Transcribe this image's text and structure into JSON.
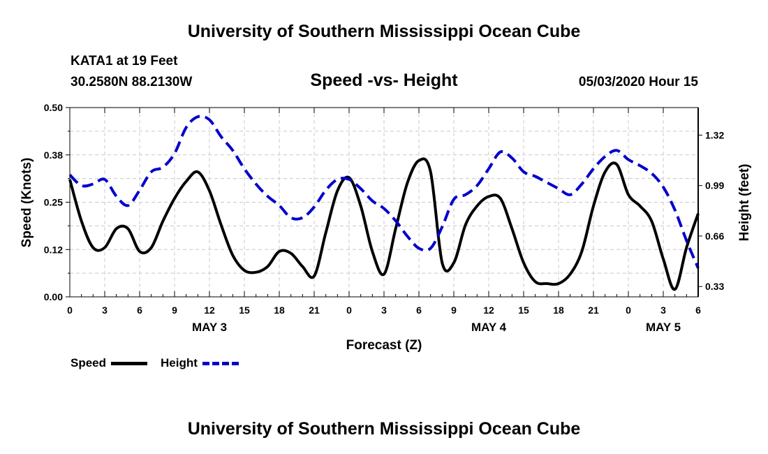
{
  "header": {
    "banner": "University of Southern Mississippi Ocean Cube",
    "station": "KATA1 at 19 Feet",
    "coords": "30.2580N 88.2130W",
    "timestamp": "05/03/2020 Hour 15"
  },
  "footer": {
    "banner": "University of Southern Mississippi Ocean Cube"
  },
  "legend": {
    "speed_label": "Speed",
    "height_label": "Height"
  },
  "chart_data": {
    "type": "line",
    "title": "Speed -vs- Height",
    "xlabel": "Forecast (Z)",
    "ylabel": "Speed (Knots)",
    "y2label": "Height (feet)",
    "xlim": [
      0,
      54
    ],
    "ylim": [
      0,
      0.5
    ],
    "y2lim": [
      0.2625,
      1.5
    ],
    "x_ticks": [
      0,
      3,
      6,
      9,
      12,
      15,
      18,
      21,
      24,
      27,
      30,
      33,
      36,
      39,
      42,
      45,
      48,
      51,
      54
    ],
    "x_tick_labels": [
      "0",
      "3",
      "6",
      "9",
      "12",
      "15",
      "18",
      "21",
      "0",
      "3",
      "6",
      "9",
      "12",
      "15",
      "18",
      "21",
      "0",
      "3",
      "6"
    ],
    "y_ticks": [
      0.0,
      0.125,
      0.25,
      0.375,
      0.5
    ],
    "y_tick_labels": [
      "0.00",
      "0.12",
      "0.25",
      "0.38",
      "0.50"
    ],
    "y2_ticks": [
      0.33,
      0.66,
      0.99,
      1.32
    ],
    "y2_tick_labels": [
      "0.33",
      "0.66",
      "0.99",
      "1.32"
    ],
    "day_labels": [
      {
        "x": 12,
        "label": "MAY 3"
      },
      {
        "x": 36,
        "label": "MAY 4"
      },
      {
        "x": 51,
        "label": "MAY 5"
      }
    ],
    "grid": true,
    "legend_position": "bottom-left",
    "series": [
      {
        "name": "Speed",
        "axis": "left",
        "color": "#000000",
        "style": "solid",
        "x": [
          0,
          1,
          2,
          3,
          4,
          5,
          6,
          7,
          8,
          9,
          10,
          11,
          12,
          13,
          14,
          15,
          16,
          17,
          18,
          19,
          20,
          21,
          22,
          23,
          24,
          25,
          26,
          27,
          28,
          29,
          30,
          31,
          32,
          33,
          34,
          35,
          36,
          37,
          38,
          39,
          40,
          41,
          42,
          43,
          44,
          45,
          46,
          47,
          48,
          49,
          50,
          51,
          52,
          53,
          54
        ],
        "values": [
          0.31,
          0.2,
          0.13,
          0.13,
          0.18,
          0.18,
          0.12,
          0.13,
          0.2,
          0.26,
          0.305,
          0.33,
          0.28,
          0.19,
          0.11,
          0.07,
          0.065,
          0.08,
          0.12,
          0.115,
          0.08,
          0.055,
          0.17,
          0.28,
          0.315,
          0.24,
          0.12,
          0.06,
          0.18,
          0.3,
          0.36,
          0.33,
          0.09,
          0.09,
          0.19,
          0.24,
          0.265,
          0.26,
          0.18,
          0.09,
          0.04,
          0.035,
          0.035,
          0.06,
          0.12,
          0.24,
          0.33,
          0.35,
          0.27,
          0.24,
          0.2,
          0.1,
          0.02,
          0.13,
          0.22
        ]
      },
      {
        "name": "Height",
        "axis": "right",
        "color": "#0000cc",
        "style": "dashed",
        "x": [
          0,
          1,
          2,
          3,
          4,
          5,
          6,
          7,
          8,
          9,
          10,
          11,
          12,
          13,
          14,
          15,
          16,
          17,
          18,
          19,
          20,
          21,
          22,
          23,
          24,
          25,
          26,
          27,
          28,
          29,
          30,
          31,
          32,
          33,
          34,
          35,
          36,
          37,
          38,
          39,
          40,
          41,
          42,
          43,
          44,
          45,
          46,
          47,
          48,
          49,
          50,
          51,
          52,
          53,
          54
        ],
        "values": [
          1.06,
          0.99,
          1.0,
          1.03,
          0.92,
          0.86,
          0.96,
          1.08,
          1.11,
          1.2,
          1.37,
          1.44,
          1.42,
          1.31,
          1.22,
          1.1,
          1.0,
          0.92,
          0.86,
          0.78,
          0.78,
          0.85,
          0.96,
          1.03,
          1.03,
          0.97,
          0.89,
          0.84,
          0.76,
          0.66,
          0.58,
          0.58,
          0.72,
          0.9,
          0.93,
          0.99,
          1.1,
          1.21,
          1.17,
          1.08,
          1.05,
          1.01,
          0.97,
          0.93,
          1.0,
          1.1,
          1.18,
          1.22,
          1.16,
          1.12,
          1.07,
          0.98,
          0.83,
          0.63,
          0.45
        ]
      }
    ]
  }
}
